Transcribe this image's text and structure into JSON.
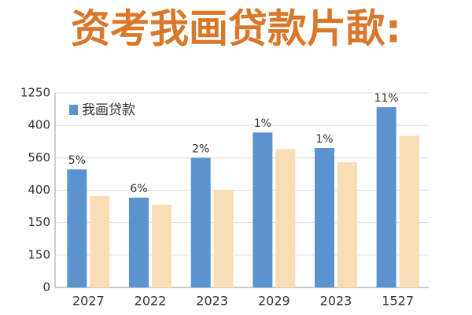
{
  "chart_data": {
    "type": "bar",
    "title": "资考我画贷款片歃:",
    "categories": [
      "2027",
      "2022",
      "2023",
      "2029",
      "2023",
      "1527"
    ],
    "series": [
      {
        "name": "我画贷款",
        "color": "#5b93cf",
        "values": [
          3.64,
          2.77,
          4.0,
          4.78,
          4.3,
          5.56
        ]
      },
      {
        "color": "#f9ddb4",
        "values": [
          2.82,
          2.55,
          3.01,
          4.27,
          3.86,
          4.68
        ]
      }
    ],
    "annotations": [
      "5%",
      "6%",
      "2%",
      "1%",
      "1%",
      "11%"
    ],
    "ylim": [
      0,
      6
    ],
    "yticks": [
      {
        "value": 0,
        "label": "0"
      },
      {
        "value": 1,
        "label": "150"
      },
      {
        "value": 2,
        "label": "150"
      },
      {
        "value": 3,
        "label": "400"
      },
      {
        "value": 4,
        "label": "560"
      },
      {
        "value": 5,
        "label": "400"
      },
      {
        "value": 6,
        "label": "1250"
      }
    ],
    "grid": true,
    "title_color": "#d9782a"
  }
}
